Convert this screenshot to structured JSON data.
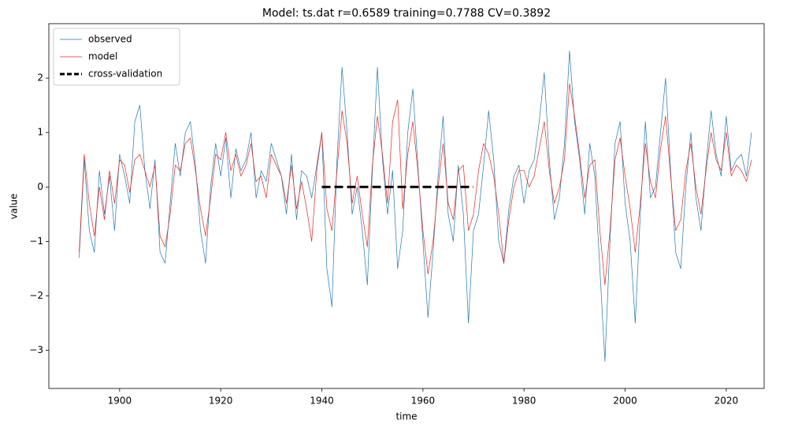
{
  "chart_data": {
    "type": "line",
    "title": "Model: ts.dat  r=0.6589  training=0.7788  CV=0.3892",
    "x_label": "time",
    "y_label": "value",
    "x": [
      1892,
      1893,
      1894,
      1895,
      1896,
      1897,
      1898,
      1899,
      1900,
      1901,
      1902,
      1903,
      1904,
      1905,
      1906,
      1907,
      1908,
      1909,
      1910,
      1911,
      1912,
      1913,
      1914,
      1915,
      1916,
      1917,
      1918,
      1919,
      1920,
      1921,
      1922,
      1923,
      1924,
      1925,
      1926,
      1927,
      1928,
      1929,
      1930,
      1931,
      1932,
      1933,
      1934,
      1935,
      1936,
      1937,
      1938,
      1939,
      1940,
      1941,
      1942,
      1943,
      1944,
      1945,
      1946,
      1947,
      1948,
      1949,
      1950,
      1951,
      1952,
      1953,
      1954,
      1955,
      1956,
      1957,
      1958,
      1959,
      1960,
      1961,
      1962,
      1963,
      1964,
      1965,
      1966,
      1967,
      1968,
      1969,
      1970,
      1971,
      1972,
      1973,
      1974,
      1975,
      1976,
      1977,
      1978,
      1979,
      1980,
      1981,
      1982,
      1983,
      1984,
      1985,
      1986,
      1987,
      1988,
      1989,
      1990,
      1991,
      1992,
      1993,
      1994,
      1995,
      1996,
      1997,
      1998,
      1999,
      2000,
      2001,
      2002,
      2003,
      2004,
      2005,
      2006,
      2007,
      2008,
      2009,
      2010,
      2011,
      2012,
      2013,
      2014,
      2015,
      2016,
      2017,
      2018,
      2019,
      2020,
      2021,
      2022,
      2023,
      2024,
      2025
    ],
    "series": [
      {
        "name": "observed",
        "color": "#1f77b4",
        "linewidth": 0.7,
        "values": [
          -1.3,
          0.5,
          -0.8,
          -1.2,
          0.3,
          -0.5,
          0.2,
          -0.8,
          0.6,
          0.2,
          -0.3,
          1.2,
          1.5,
          0.3,
          -0.4,
          0.5,
          -1.2,
          -1.4,
          -0.3,
          0.8,
          0.2,
          1.0,
          1.2,
          0.4,
          -0.8,
          -1.4,
          0.0,
          0.8,
          0.2,
          0.9,
          -0.2,
          0.7,
          0.3,
          0.5,
          1.0,
          -0.2,
          0.3,
          0.1,
          0.8,
          0.5,
          0.2,
          -0.5,
          0.6,
          -0.6,
          0.3,
          0.2,
          -0.2,
          0.4,
          1.0,
          -1.5,
          -2.2,
          0.5,
          2.2,
          1.0,
          -0.5,
          0.0,
          -0.8,
          -1.8,
          0.3,
          2.2,
          0.5,
          -0.5,
          0.3,
          -1.5,
          -0.8,
          1.0,
          1.8,
          0.4,
          -1.0,
          -2.4,
          -1.2,
          0.2,
          1.3,
          -0.5,
          -1.0,
          0.4,
          -0.5,
          -2.5,
          -0.8,
          -0.5,
          0.4,
          1.4,
          0.5,
          -1.0,
          -1.4,
          -0.4,
          0.2,
          0.4,
          -0.3,
          0.3,
          0.5,
          1.2,
          2.1,
          0.5,
          -0.6,
          -0.2,
          0.8,
          2.5,
          1.2,
          0.5,
          -0.5,
          0.8,
          0.2,
          -1.5,
          -3.2,
          -1.0,
          0.8,
          1.2,
          -0.3,
          -1.0,
          -2.5,
          -0.5,
          1.2,
          -0.2,
          0.0,
          1.0,
          2.0,
          0.3,
          -1.2,
          -1.5,
          0.0,
          1.0,
          -0.2,
          -0.8,
          0.4,
          1.4,
          0.6,
          0.2,
          1.3,
          0.3,
          0.5,
          0.6,
          0.2,
          1.0
        ]
      },
      {
        "name": "model",
        "color": "#e8251c",
        "linewidth": 0.7,
        "values": [
          -1.2,
          0.6,
          -0.3,
          -0.9,
          0.0,
          -0.6,
          0.3,
          -0.3,
          0.5,
          0.4,
          -0.1,
          0.5,
          0.6,
          0.3,
          0.0,
          0.4,
          -0.9,
          -1.1,
          -0.5,
          0.4,
          0.3,
          0.8,
          0.9,
          0.3,
          -0.4,
          -0.9,
          -0.2,
          0.6,
          0.5,
          1.0,
          0.3,
          0.6,
          0.2,
          0.4,
          0.8,
          0.1,
          0.2,
          -0.2,
          0.6,
          0.4,
          0.2,
          -0.3,
          0.4,
          -0.4,
          0.1,
          -0.4,
          -1.0,
          0.3,
          1.0,
          -0.4,
          -0.8,
          0.3,
          1.4,
          0.8,
          -0.3,
          0.2,
          -0.5,
          -1.1,
          0.4,
          1.3,
          0.6,
          -0.3,
          1.2,
          1.6,
          -0.4,
          0.6,
          1.2,
          0.3,
          -0.8,
          -1.6,
          -1.0,
          0.0,
          0.8,
          -0.3,
          -0.6,
          0.3,
          0.4,
          -0.8,
          -0.5,
          0.3,
          0.8,
          0.6,
          0.2,
          -0.5,
          -1.4,
          -0.6,
          0.0,
          0.3,
          0.3,
          0.0,
          0.2,
          0.7,
          1.2,
          0.3,
          -0.3,
          0.0,
          0.5,
          1.9,
          1.3,
          0.6,
          -0.2,
          0.4,
          0.5,
          -0.8,
          -1.8,
          -0.8,
          0.5,
          0.9,
          0.2,
          -0.4,
          -1.2,
          -0.3,
          0.8,
          0.1,
          -0.2,
          0.7,
          1.3,
          0.2,
          -0.8,
          -0.6,
          0.3,
          0.8,
          0.0,
          -0.5,
          0.3,
          1.0,
          0.5,
          0.3,
          1.0,
          0.2,
          0.4,
          0.3,
          0.1,
          0.5
        ]
      },
      {
        "name": "cross-validation",
        "color": "#000000",
        "linewidth": 3,
        "style": "dashed",
        "x": [
          1940,
          1970
        ],
        "values": [
          0,
          0
        ]
      }
    ],
    "xlim": [
      1886,
      2027.5
    ],
    "ylim": [
      -3.7,
      3.0
    ],
    "xticks": [
      1900,
      1920,
      1940,
      1960,
      1980,
      2000,
      2020
    ],
    "yticks": [
      {
        "value": -3,
        "label": "−3"
      },
      {
        "value": -2,
        "label": "−2"
      },
      {
        "value": -1,
        "label": "−1"
      },
      0,
      1,
      2
    ],
    "legend": "upper left"
  }
}
